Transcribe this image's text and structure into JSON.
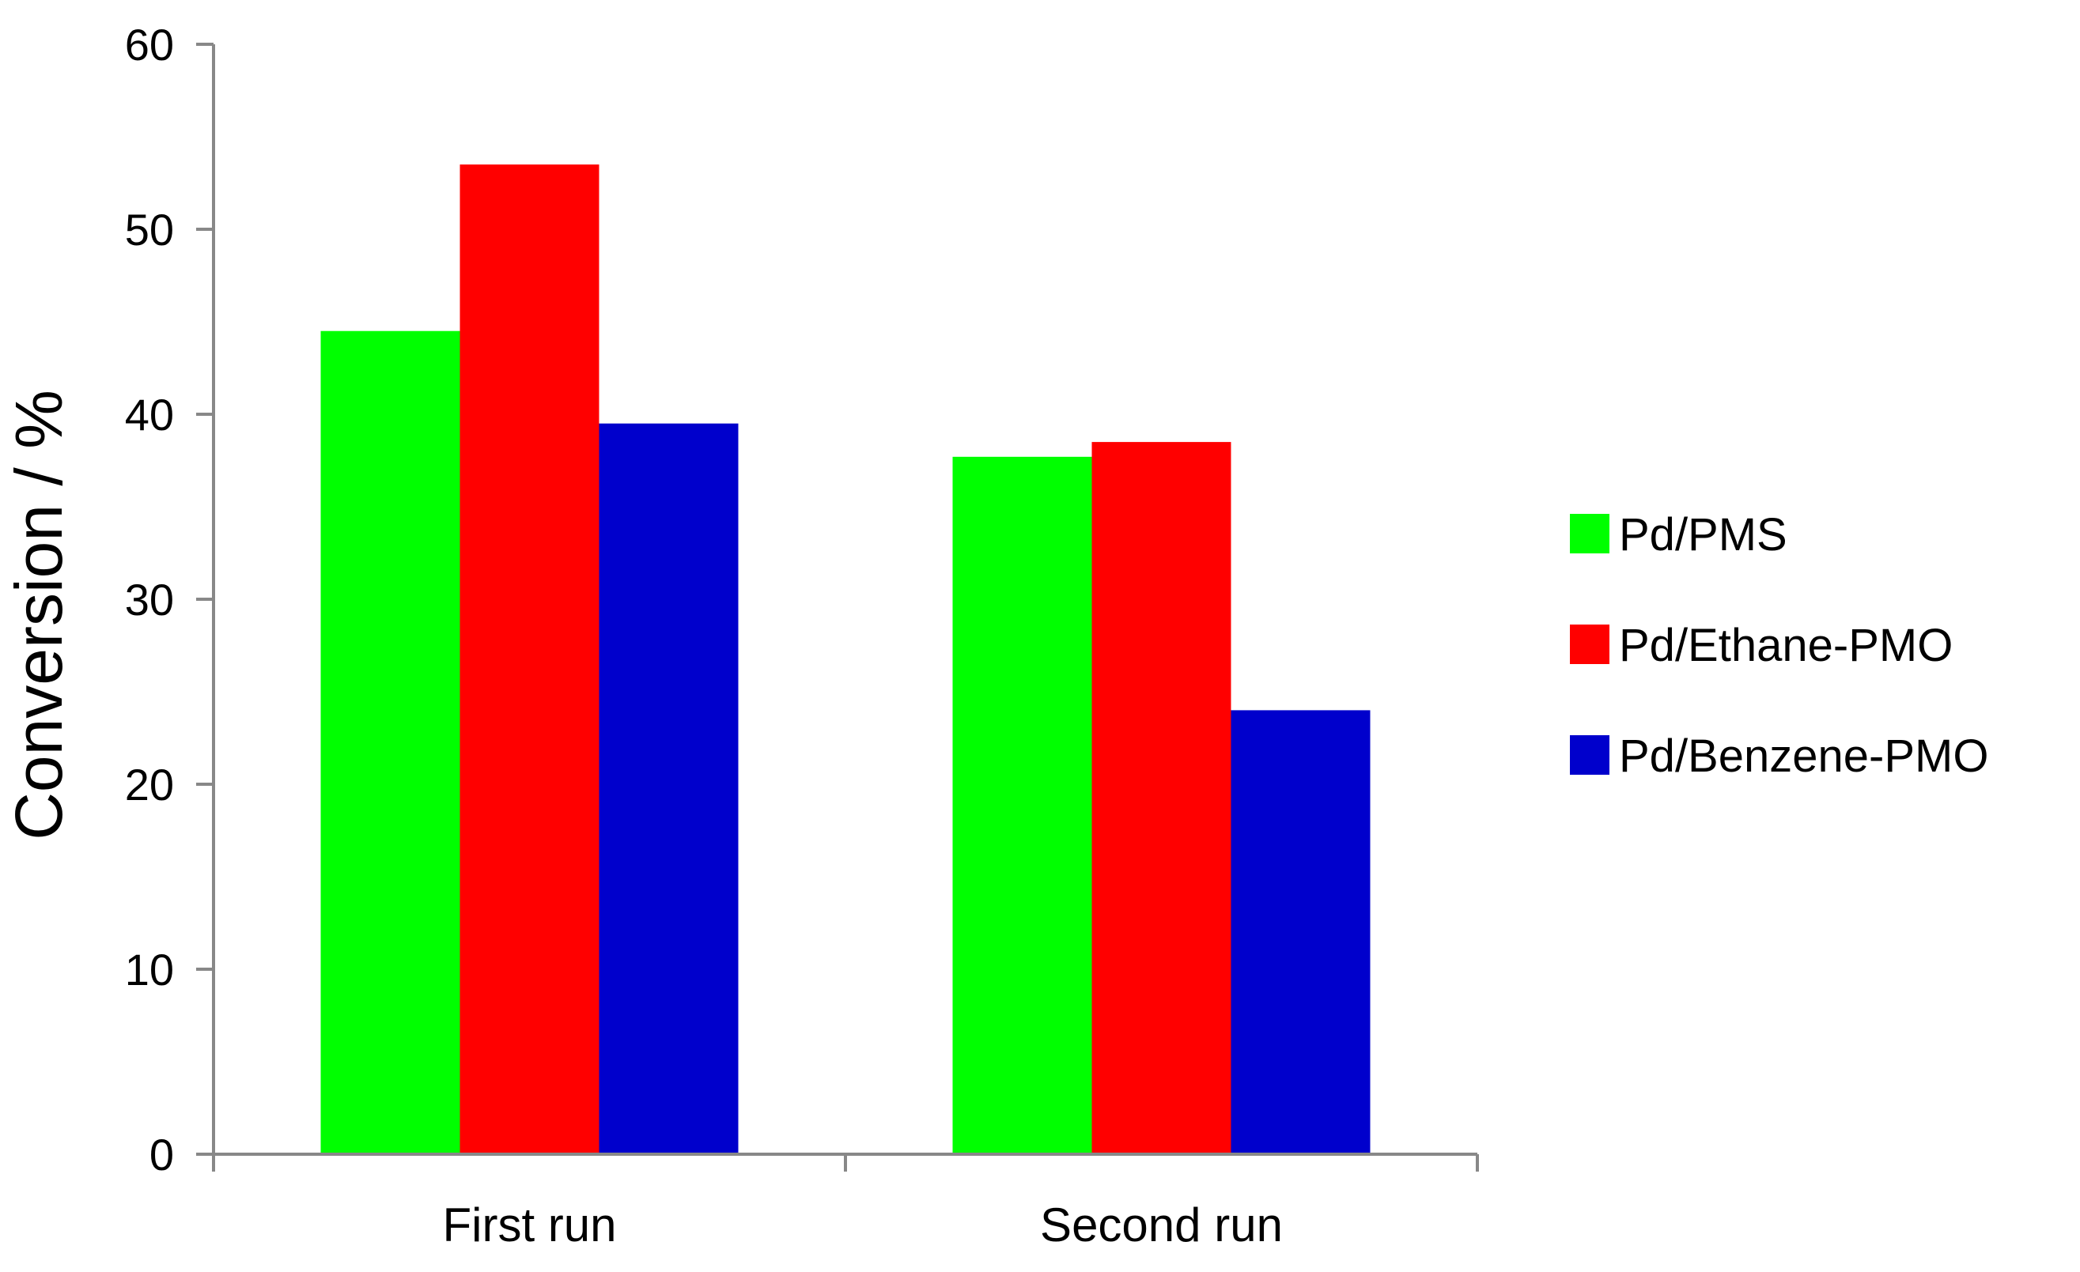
{
  "chart_data": {
    "type": "bar",
    "title": "",
    "xlabel": "",
    "ylabel": "Conversion / %",
    "ylim": [
      0,
      60
    ],
    "yticks": [
      0,
      10,
      20,
      30,
      40,
      50,
      60
    ],
    "categories": [
      "First run",
      "Second run"
    ],
    "series": [
      {
        "name": "Pd/PMS",
        "color": "#00ff00",
        "values": [
          44.5,
          37.7
        ]
      },
      {
        "name": "Pd/Ethane-PMO",
        "color": "#ff0000",
        "values": [
          53.5,
          38.5
        ]
      },
      {
        "name": "Pd/Benzene-PMO",
        "color": "#0000cc",
        "values": [
          39.5,
          24.0
        ]
      }
    ],
    "grid": false,
    "legend_position": "right"
  }
}
